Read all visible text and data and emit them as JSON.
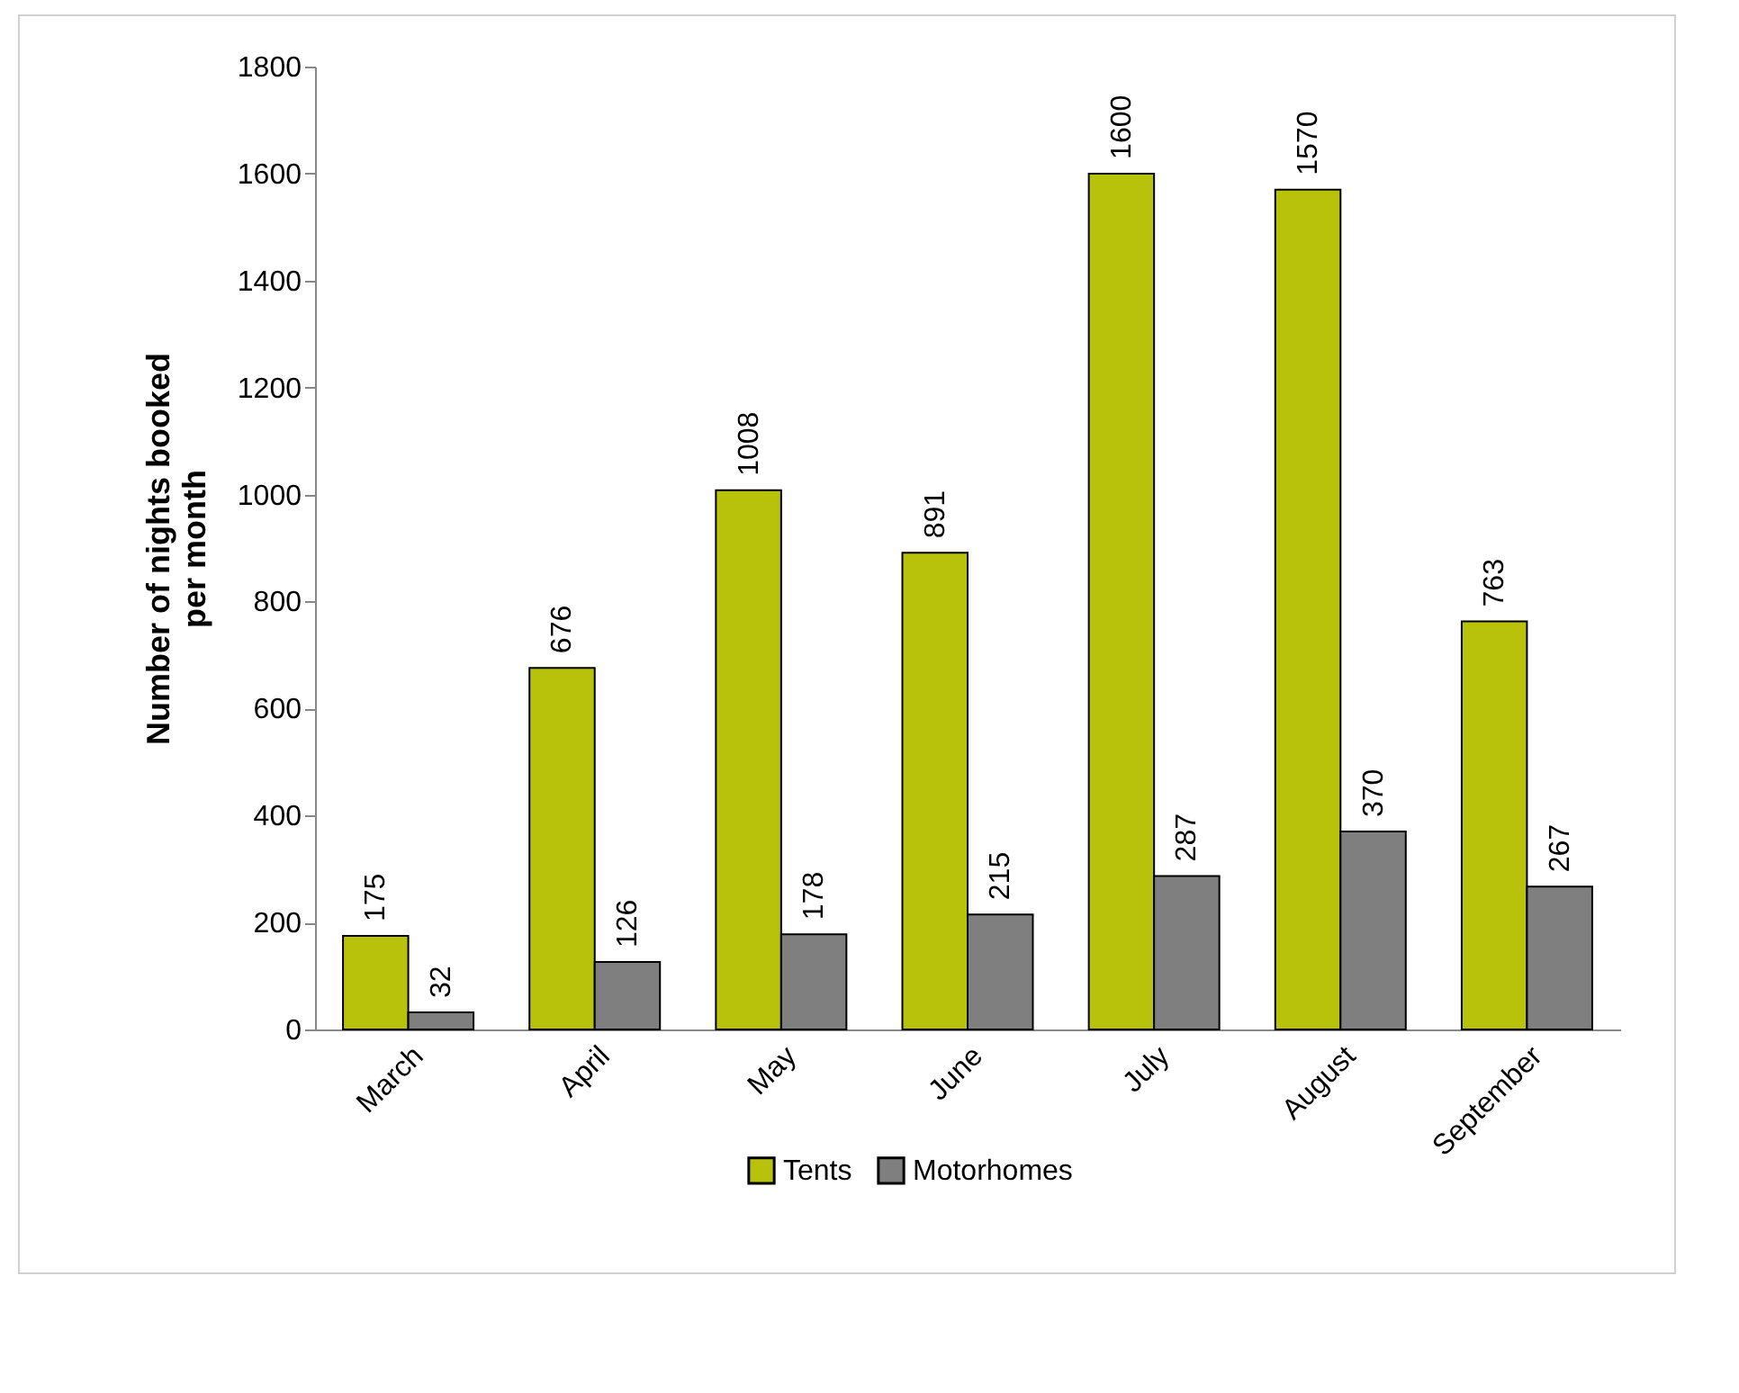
{
  "chart_data": {
    "type": "bar",
    "ylabel": "Number of nights booked per month",
    "categories": [
      "March",
      "April",
      "May",
      "June",
      "July",
      "August",
      "September"
    ],
    "series": [
      {
        "name": "Tents",
        "color": "#b8c20a",
        "values": [
          175,
          676,
          1008,
          891,
          1600,
          1570,
          763
        ]
      },
      {
        "name": "Motorhomes",
        "color": "#7f7f7f",
        "values": [
          32,
          126,
          178,
          215,
          287,
          370,
          267
        ]
      }
    ],
    "ylim": [
      0,
      1800
    ],
    "yticks": [
      0,
      200,
      400,
      600,
      800,
      1000,
      1200,
      1400,
      1600,
      1800
    ],
    "data_labels": true,
    "legend": "bottom"
  }
}
